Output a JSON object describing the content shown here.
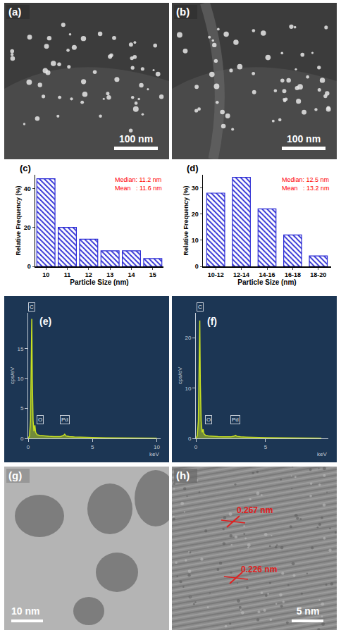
{
  "images": [
    {
      "panel": "(a)",
      "scale_bar": "100 nm"
    },
    {
      "panel": "(b)",
      "scale_bar": "100 nm"
    },
    {
      "panel": "(g)",
      "scale_bar": "10 nm"
    },
    {
      "panel": "(h)",
      "scale_bar": "5 nm",
      "lattice_spacings": [
        "0.267 nm",
        "0.226 nm"
      ]
    }
  ],
  "chart_data": [
    {
      "panel": "(c)",
      "type": "bar",
      "categories": [
        "10",
        "11",
        "12",
        "13",
        "14",
        "15"
      ],
      "values": [
        45,
        20,
        14,
        8,
        8,
        4
      ],
      "color": "#2a2ad4",
      "ylim": [
        0,
        47
      ],
      "yticks": [
        0,
        20,
        40
      ],
      "x_label": "Particle Size (nm)",
      "y_label": "Relative Frequency (%)",
      "annotations": [
        {
          "text": "Median: 11.2 nm",
          "color": "#ff0000"
        },
        {
          "text": "Mean   : 11.6 nm",
          "color": "#ff0000"
        }
      ],
      "grid": false
    },
    {
      "panel": "(d)",
      "type": "bar",
      "categories": [
        "10-12",
        "12-14",
        "14-16",
        "16-18",
        "18-20"
      ],
      "values": [
        28,
        34,
        22,
        12,
        4
      ],
      "color": "#2a2ad4",
      "ylim": [
        0,
        35
      ],
      "yticks": [
        0,
        10,
        20,
        30
      ],
      "x_label": "Particle Size (nm)",
      "y_label": "Relative Frequency (%)",
      "annotations": [
        {
          "text": "Median: 12.5 nm",
          "color": "#ff0000"
        },
        {
          "text": "Mean   : 13.2 nm",
          "color": "#ff0000"
        }
      ],
      "grid": false
    },
    {
      "panel": "(e)",
      "type": "line",
      "x": [
        0,
        0.1,
        0.18,
        0.24,
        0.28,
        0.32,
        0.38,
        0.45,
        0.52,
        0.58,
        0.7,
        0.9,
        1.2,
        1.6,
        2.0,
        2.5,
        2.75,
        2.84,
        2.95,
        3.2,
        3.6,
        4.0,
        5.0,
        6.0,
        7.0,
        8.0,
        9.0,
        10.0
      ],
      "values": [
        0,
        0.4,
        3,
        12,
        20,
        10,
        3,
        1.2,
        2.2,
        1.0,
        0.6,
        0.5,
        0.4,
        0.35,
        0.3,
        0.3,
        0.5,
        0.7,
        0.4,
        0.3,
        0.25,
        0.2,
        0.15,
        0.1,
        0.08,
        0.06,
        0.05,
        0.04
      ],
      "color": "#c8e020",
      "xlim": [
        0,
        10.3
      ],
      "xticks": [
        0,
        5,
        10
      ],
      "ylim": [
        0,
        21
      ],
      "yticks": [
        0,
        5,
        10,
        15
      ],
      "x_label": "keV",
      "y_label": "cps/eV",
      "peaks": [
        {
          "label": "C",
          "x": 0.28
        },
        {
          "label": "O",
          "x": 0.52
        },
        {
          "label": "Pd",
          "x": 2.84
        }
      ],
      "grid": false
    },
    {
      "panel": "(f)",
      "type": "line",
      "x": [
        0,
        0.1,
        0.18,
        0.24,
        0.28,
        0.32,
        0.38,
        0.45,
        0.52,
        0.58,
        0.7,
        0.9,
        1.2,
        1.6,
        2.0,
        2.5,
        2.75,
        2.84,
        2.95,
        3.2,
        3.6,
        4.0,
        5.0,
        6.0,
        7.0,
        8.0,
        9.0
      ],
      "values": [
        0,
        0.5,
        3.5,
        14,
        23.5,
        11,
        3.5,
        1.2,
        1.8,
        0.9,
        0.6,
        0.5,
        0.4,
        0.35,
        0.3,
        0.3,
        0.45,
        0.6,
        0.4,
        0.3,
        0.25,
        0.2,
        0.15,
        0.1,
        0.08,
        0.06,
        0.05
      ],
      "color": "#c8e020",
      "xlim": [
        0,
        9.5
      ],
      "xticks": [
        0,
        5
      ],
      "ylim": [
        0,
        25
      ],
      "yticks": [
        0,
        10,
        20
      ],
      "x_label": "keV",
      "y_label": "cps/eV",
      "peaks": [
        {
          "label": "C",
          "x": 0.28
        },
        {
          "label": "O",
          "x": 0.52
        },
        {
          "label": "Pd",
          "x": 2.84
        }
      ],
      "grid": false
    }
  ]
}
